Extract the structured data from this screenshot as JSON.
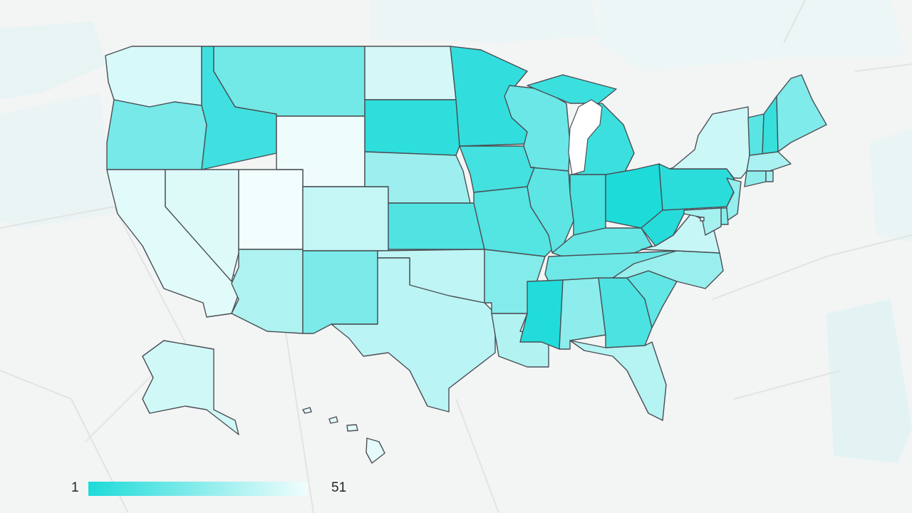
{
  "legend": {
    "min_label": "1",
    "max_label": "51",
    "low_color": "#1ddbd9",
    "high_color": "#f2fdfd"
  },
  "lake_color": "#ffffff",
  "states": [
    {
      "id": "WA",
      "rank": 45
    },
    {
      "id": "OR",
      "rank": 22
    },
    {
      "id": "CA",
      "rank": 47
    },
    {
      "id": "NV",
      "rank": 46
    },
    {
      "id": "ID",
      "rank": 9
    },
    {
      "id": "MT",
      "rank": 21
    },
    {
      "id": "WY",
      "rank": 50
    },
    {
      "id": "UT",
      "rank": 51
    },
    {
      "id": "CO",
      "rank": 40
    },
    {
      "id": "AZ",
      "rank": 35
    },
    {
      "id": "NM",
      "rank": 23
    },
    {
      "id": "ND",
      "rank": 44
    },
    {
      "id": "SD",
      "rank": 5
    },
    {
      "id": "NE",
      "rank": 31
    },
    {
      "id": "KS",
      "rank": 13
    },
    {
      "id": "OK",
      "rank": 39
    },
    {
      "id": "TX",
      "rank": 38
    },
    {
      "id": "MN",
      "rank": 6
    },
    {
      "id": "IA",
      "rank": 10
    },
    {
      "id": "MO",
      "rank": 14
    },
    {
      "id": "AR",
      "rank": 25
    },
    {
      "id": "LA",
      "rank": 36
    },
    {
      "id": "WI",
      "rank": 19
    },
    {
      "id": "IL",
      "rank": 16
    },
    {
      "id": "MI",
      "rank": 8
    },
    {
      "id": "IN",
      "rank": 11
    },
    {
      "id": "OH",
      "rank": 1
    },
    {
      "id": "KY",
      "rank": 18
    },
    {
      "id": "TN",
      "rank": 20
    },
    {
      "id": "MS",
      "rank": 2
    },
    {
      "id": "AL",
      "rank": 27
    },
    {
      "id": "GA",
      "rank": 12
    },
    {
      "id": "FL",
      "rank": 37
    },
    {
      "id": "SC",
      "rank": 17
    },
    {
      "id": "NC",
      "rank": 30
    },
    {
      "id": "VA",
      "rank": 41
    },
    {
      "id": "WV",
      "rank": 3
    },
    {
      "id": "PA",
      "rank": 4
    },
    {
      "id": "NY",
      "rank": 42
    },
    {
      "id": "VT",
      "rank": 15
    },
    {
      "id": "NH",
      "rank": 7
    },
    {
      "id": "ME",
      "rank": 24
    },
    {
      "id": "MA",
      "rank": 34
    },
    {
      "id": "CT",
      "rank": 28
    },
    {
      "id": "RI",
      "rank": 32
    },
    {
      "id": "NJ",
      "rank": 29
    },
    {
      "id": "DE",
      "rank": 26
    },
    {
      "id": "MD",
      "rank": 33
    },
    {
      "id": "DC",
      "rank": 49
    },
    {
      "id": "AK",
      "rank": 43
    },
    {
      "id": "HI",
      "rank": 48
    }
  ]
}
